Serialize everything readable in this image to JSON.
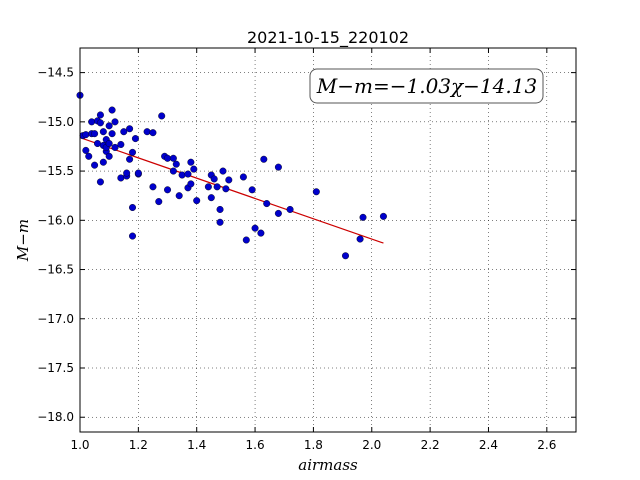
{
  "chart_data": {
    "type": "scatter",
    "title": "2021-10-15_220102",
    "xlabel": "airmass",
    "ylabel": "M−m",
    "annotation": "M−m=−1.03χ−14.13",
    "xlim": [
      1.0,
      2.7
    ],
    "ylim": [
      -18.15,
      -14.25
    ],
    "x_ticks": [
      1.0,
      1.2,
      1.4,
      1.6,
      1.8,
      2.0,
      2.2,
      2.4,
      2.6
    ],
    "x_tick_labels": [
      "1.0",
      "1.2",
      "1.4",
      "1.6",
      "1.8",
      "2.0",
      "2.2",
      "2.4",
      "2.6"
    ],
    "y_ticks": [
      -14.5,
      -15.0,
      -15.5,
      -16.0,
      -16.5,
      -17.0,
      -17.5,
      -18.0
    ],
    "y_tick_labels": [
      "−14.5",
      "−15.0",
      "−15.5",
      "−16.0",
      "−16.5",
      "−17.0",
      "−17.5",
      "−18.0"
    ],
    "grid": true,
    "colors": {
      "points": "#0000cc",
      "fit": "#cc0000"
    },
    "fit": {
      "slope": -1.03,
      "intercept": -14.13,
      "x_range": [
        1.0,
        2.04
      ]
    },
    "series": [
      {
        "points": [
          [
            1.0,
            -14.73
          ],
          [
            1.01,
            -15.14
          ],
          [
            1.02,
            -15.13
          ],
          [
            1.02,
            -15.29
          ],
          [
            1.03,
            -15.35
          ],
          [
            1.04,
            -15.12
          ],
          [
            1.04,
            -15.0
          ],
          [
            1.05,
            -15.44
          ],
          [
            1.05,
            -15.12
          ],
          [
            1.06,
            -14.99
          ],
          [
            1.06,
            -15.22
          ],
          [
            1.07,
            -14.93
          ],
          [
            1.07,
            -15.01
          ],
          [
            1.07,
            -15.61
          ],
          [
            1.08,
            -15.41
          ],
          [
            1.08,
            -15.1
          ],
          [
            1.08,
            -15.24
          ],
          [
            1.09,
            -15.18
          ],
          [
            1.09,
            -15.3
          ],
          [
            1.09,
            -15.26
          ],
          [
            1.1,
            -15.22
          ],
          [
            1.1,
            -15.35
          ],
          [
            1.1,
            -15.04
          ],
          [
            1.11,
            -15.12
          ],
          [
            1.11,
            -14.88
          ],
          [
            1.12,
            -15.0
          ],
          [
            1.12,
            -15.26
          ],
          [
            1.14,
            -15.57
          ],
          [
            1.14,
            -15.23
          ],
          [
            1.15,
            -15.1
          ],
          [
            1.16,
            -15.55
          ],
          [
            1.16,
            -15.52
          ],
          [
            1.17,
            -15.07
          ],
          [
            1.17,
            -15.38
          ],
          [
            1.18,
            -15.31
          ],
          [
            1.18,
            -15.87
          ],
          [
            1.18,
            -16.16
          ],
          [
            1.19,
            -15.17
          ],
          [
            1.2,
            -15.53
          ],
          [
            1.2,
            -15.52
          ],
          [
            1.23,
            -15.1
          ],
          [
            1.25,
            -15.11
          ],
          [
            1.25,
            -15.66
          ],
          [
            1.27,
            -15.81
          ],
          [
            1.28,
            -14.94
          ],
          [
            1.29,
            -15.35
          ],
          [
            1.3,
            -15.69
          ],
          [
            1.3,
            -15.37
          ],
          [
            1.32,
            -15.5
          ],
          [
            1.32,
            -15.37
          ],
          [
            1.33,
            -15.43
          ],
          [
            1.34,
            -15.75
          ],
          [
            1.35,
            -15.54
          ],
          [
            1.37,
            -15.53
          ],
          [
            1.37,
            -15.67
          ],
          [
            1.38,
            -15.41
          ],
          [
            1.38,
            -15.63
          ],
          [
            1.39,
            -15.48
          ],
          [
            1.4,
            -15.8
          ],
          [
            1.44,
            -15.66
          ],
          [
            1.45,
            -15.77
          ],
          [
            1.45,
            -15.54
          ],
          [
            1.46,
            -15.58
          ],
          [
            1.47,
            -15.66
          ],
          [
            1.48,
            -15.89
          ],
          [
            1.48,
            -16.02
          ],
          [
            1.49,
            -15.5
          ],
          [
            1.5,
            -15.68
          ],
          [
            1.51,
            -15.59
          ],
          [
            1.56,
            -15.56
          ],
          [
            1.57,
            -16.2
          ],
          [
            1.59,
            -15.69
          ],
          [
            1.6,
            -16.08
          ],
          [
            1.62,
            -16.13
          ],
          [
            1.63,
            -15.38
          ],
          [
            1.64,
            -15.83
          ],
          [
            1.68,
            -15.93
          ],
          [
            1.68,
            -15.46
          ],
          [
            1.72,
            -15.89
          ],
          [
            1.81,
            -15.71
          ],
          [
            1.91,
            -16.36
          ],
          [
            1.96,
            -16.19
          ],
          [
            1.97,
            -15.97
          ],
          [
            2.04,
            -15.96
          ]
        ]
      }
    ]
  }
}
